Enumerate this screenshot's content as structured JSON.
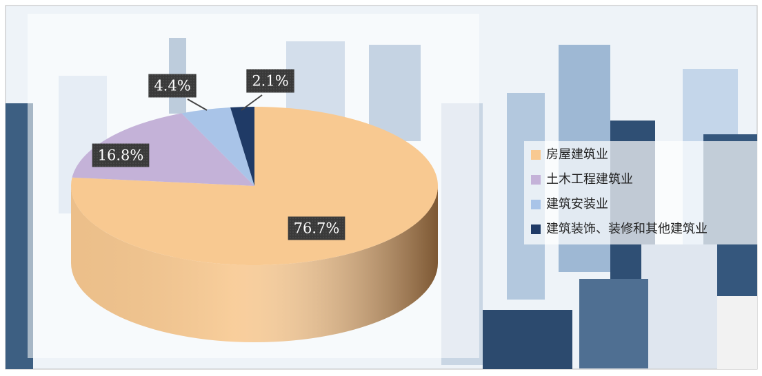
{
  "chart_data": {
    "type": "pie",
    "categories": [
      "房屋建筑业",
      "土木工程建筑业",
      "建筑安装业",
      "建筑装饰、装修和其他建筑业"
    ],
    "values": [
      76.7,
      16.8,
      4.4,
      2.1
    ],
    "value_labels": [
      "76.7%",
      "16.8%",
      "4.4%",
      "2.1%"
    ],
    "colors": [
      "#f8c991",
      "#c4b2d8",
      "#a9c4e8",
      "#1f3a66"
    ],
    "legend": "right"
  }
}
